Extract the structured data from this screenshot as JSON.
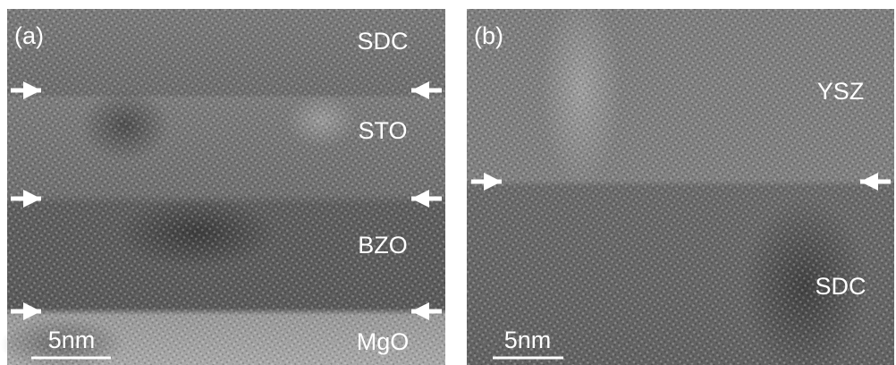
{
  "panels": [
    {
      "label": "(a)",
      "layers": [
        "SDC",
        "STO",
        "BZO",
        "MgO"
      ],
      "scale_bar": "5nm"
    },
    {
      "label": "(b)",
      "layers": [
        "YSZ",
        "SDC"
      ],
      "scale_bar": "5nm"
    }
  ]
}
